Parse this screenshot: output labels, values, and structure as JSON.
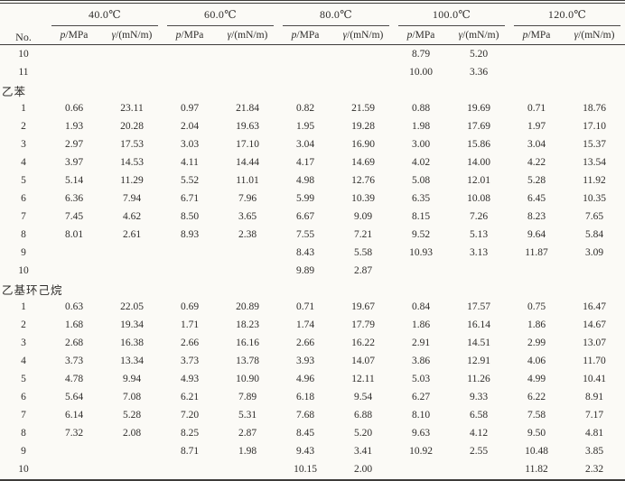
{
  "table": {
    "corner_header": "No.",
    "temp_headers": [
      "40.0℃",
      "60.0℃",
      "80.0℃",
      "100.0℃",
      "120.0℃"
    ],
    "sub_header": {
      "p_symbol": "p",
      "p_unit": "/MPa",
      "gamma_symbol": "γ",
      "gamma_unit": "/(mN/m)"
    },
    "rows": [
      {
        "type": "data",
        "no": "10",
        "values": [
          "",
          "",
          "",
          "",
          "",
          "",
          "8.79",
          "5.20",
          "",
          ""
        ]
      },
      {
        "type": "data",
        "no": "11",
        "values": [
          "",
          "",
          "",
          "",
          "",
          "",
          "10.00",
          "3.36",
          "",
          ""
        ]
      },
      {
        "type": "section",
        "label": "乙苯"
      },
      {
        "type": "data",
        "no": "1",
        "values": [
          "0.66",
          "23.11",
          "0.97",
          "21.84",
          "0.82",
          "21.59",
          "0.88",
          "19.69",
          "0.71",
          "18.76"
        ]
      },
      {
        "type": "data",
        "no": "2",
        "values": [
          "1.93",
          "20.28",
          "2.04",
          "19.63",
          "1.95",
          "19.28",
          "1.98",
          "17.69",
          "1.97",
          "17.10"
        ]
      },
      {
        "type": "data",
        "no": "3",
        "values": [
          "2.97",
          "17.53",
          "3.03",
          "17.10",
          "3.04",
          "16.90",
          "3.00",
          "15.86",
          "3.04",
          "15.37"
        ]
      },
      {
        "type": "data",
        "no": "4",
        "values": [
          "3.97",
          "14.53",
          "4.11",
          "14.44",
          "4.17",
          "14.69",
          "4.02",
          "14.00",
          "4.22",
          "13.54"
        ]
      },
      {
        "type": "data",
        "no": "5",
        "values": [
          "5.14",
          "11.29",
          "5.52",
          "11.01",
          "4.98",
          "12.76",
          "5.08",
          "12.01",
          "5.28",
          "11.92"
        ]
      },
      {
        "type": "data",
        "no": "6",
        "values": [
          "6.36",
          "7.94",
          "6.71",
          "7.96",
          "5.99",
          "10.39",
          "6.35",
          "10.08",
          "6.45",
          "10.35"
        ]
      },
      {
        "type": "data",
        "no": "7",
        "values": [
          "7.45",
          "4.62",
          "8.50",
          "3.65",
          "6.67",
          "9.09",
          "8.15",
          "7.26",
          "8.23",
          "7.65"
        ]
      },
      {
        "type": "data",
        "no": "8",
        "values": [
          "8.01",
          "2.61",
          "8.93",
          "2.38",
          "7.55",
          "7.21",
          "9.52",
          "5.13",
          "9.64",
          "5.84"
        ]
      },
      {
        "type": "data",
        "no": "9",
        "values": [
          "",
          "",
          "",
          "",
          "8.43",
          "5.58",
          "10.93",
          "3.13",
          "11.87",
          "3.09"
        ]
      },
      {
        "type": "data",
        "no": "10",
        "values": [
          "",
          "",
          "",
          "",
          "9.89",
          "2.87",
          "",
          "",
          "",
          ""
        ]
      },
      {
        "type": "section",
        "label": "乙基环己烷"
      },
      {
        "type": "data",
        "no": "1",
        "values": [
          "0.63",
          "22.05",
          "0.69",
          "20.89",
          "0.71",
          "19.67",
          "0.84",
          "17.57",
          "0.75",
          "16.47"
        ]
      },
      {
        "type": "data",
        "no": "2",
        "values": [
          "1.68",
          "19.34",
          "1.71",
          "18.23",
          "1.74",
          "17.79",
          "1.86",
          "16.14",
          "1.86",
          "14.67"
        ]
      },
      {
        "type": "data",
        "no": "3",
        "values": [
          "2.68",
          "16.38",
          "2.66",
          "16.16",
          "2.66",
          "16.22",
          "2.91",
          "14.51",
          "2.99",
          "13.07"
        ]
      },
      {
        "type": "data",
        "no": "4",
        "values": [
          "3.73",
          "13.34",
          "3.73",
          "13.78",
          "3.93",
          "14.07",
          "3.86",
          "12.91",
          "4.06",
          "11.70"
        ]
      },
      {
        "type": "data",
        "no": "5",
        "values": [
          "4.78",
          "9.94",
          "4.93",
          "10.90",
          "4.96",
          "12.11",
          "5.03",
          "11.26",
          "4.99",
          "10.41"
        ]
      },
      {
        "type": "data",
        "no": "6",
        "values": [
          "5.64",
          "7.08",
          "6.21",
          "7.89",
          "6.18",
          "9.54",
          "6.27",
          "9.33",
          "6.22",
          "8.91"
        ]
      },
      {
        "type": "data",
        "no": "7",
        "values": [
          "6.14",
          "5.28",
          "7.20",
          "5.31",
          "7.68",
          "6.88",
          "8.10",
          "6.58",
          "7.58",
          "7.17"
        ]
      },
      {
        "type": "data",
        "no": "8",
        "values": [
          "7.32",
          "2.08",
          "8.25",
          "2.87",
          "8.45",
          "5.20",
          "9.63",
          "4.12",
          "9.50",
          "4.81"
        ]
      },
      {
        "type": "data",
        "no": "9",
        "values": [
          "",
          "",
          "8.71",
          "1.98",
          "9.43",
          "3.41",
          "10.92",
          "2.55",
          "10.48",
          "3.85"
        ]
      },
      {
        "type": "data",
        "no": "10",
        "values": [
          "",
          "",
          "",
          "",
          "10.15",
          "2.00",
          "",
          "",
          "11.82",
          "2.32"
        ]
      }
    ]
  }
}
